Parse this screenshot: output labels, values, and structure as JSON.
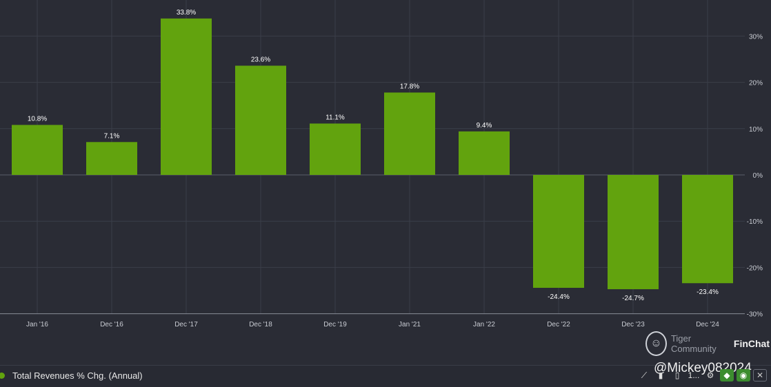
{
  "chart_data": {
    "type": "bar",
    "categories": [
      "Jan '16",
      "Dec '16",
      "Dec '17",
      "Dec '18",
      "Dec '19",
      "Jan '21",
      "Jan '22",
      "Dec '22",
      "Dec '23",
      "Dec '24"
    ],
    "values": [
      10.8,
      7.1,
      33.8,
      23.6,
      11.1,
      17.8,
      9.4,
      -24.4,
      -24.7,
      -23.4
    ],
    "value_labels": [
      "10.8%",
      "7.1%",
      "33.8%",
      "23.6%",
      "11.1%",
      "17.8%",
      "9.4%",
      "-24.4%",
      "-24.7%",
      "-23.4%"
    ],
    "y_ticks": [
      30,
      20,
      10,
      0,
      -10,
      -20,
      -30
    ],
    "y_tick_labels": [
      "30%",
      "20%",
      "10%",
      "0%",
      "-10%",
      "-20%",
      "-30%"
    ],
    "ylim": [
      -30,
      38
    ],
    "series_name": "Total Revenues % Chg. (Annual)",
    "bar_color": "#62a30e",
    "grid": true
  },
  "legend": {
    "label": "Total Revenues % Chg. (Annual)"
  },
  "watermark": {
    "text": "Tiger Community",
    "brand": "FinChat"
  },
  "handle": "@Mickey082024",
  "toolbar": {
    "more": "1..."
  }
}
